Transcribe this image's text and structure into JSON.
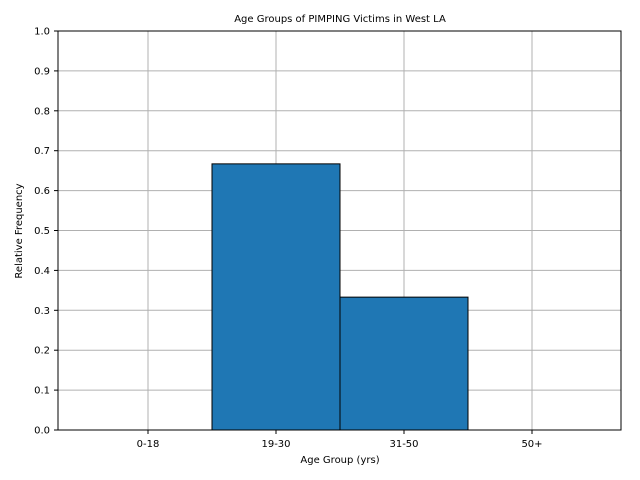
{
  "chart_data": {
    "type": "bar",
    "title": "Age Groups of PIMPING Victims in West LA",
    "xlabel": "Age Group (yrs)",
    "ylabel": "Relative Frequency",
    "categories": [
      "0-18",
      "19-30",
      "31-50",
      "50+"
    ],
    "values": [
      0.0,
      0.667,
      0.333,
      0.0
    ],
    "ylim": [
      0,
      1.0
    ],
    "yticks": [
      "0.0",
      "0.1",
      "0.2",
      "0.3",
      "0.4",
      "0.5",
      "0.6",
      "0.7",
      "0.8",
      "0.9",
      "1.0"
    ],
    "grid": true,
    "legend": "none",
    "bar_color": "#1f77b4",
    "edge_color": "#000000"
  }
}
